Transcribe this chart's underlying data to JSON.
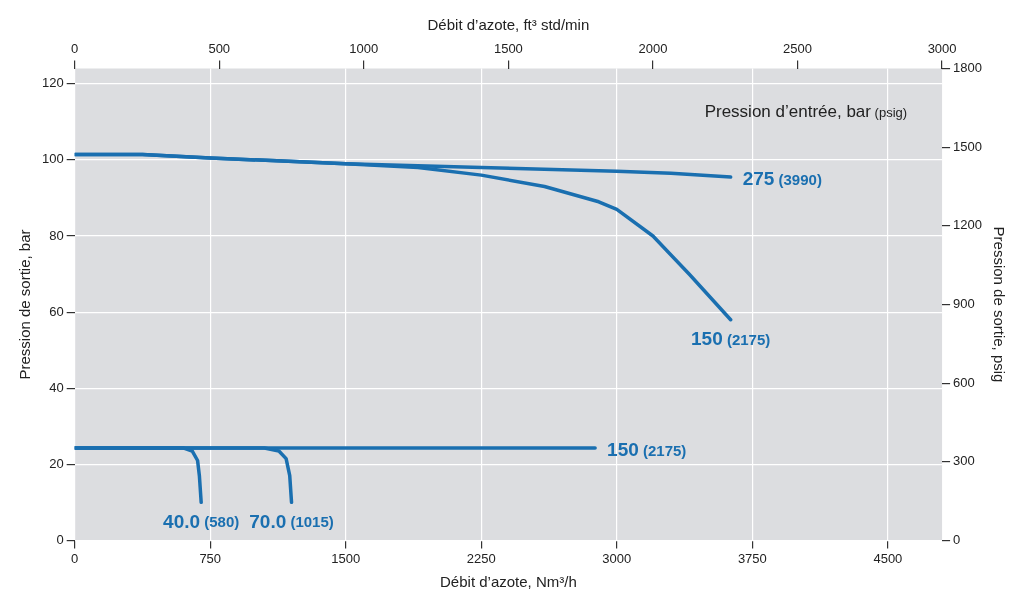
{
  "chart_data": {
    "type": "line",
    "xlabel": "Débit d’azote, Nm³/h",
    "x2label": "Débit d’azote, ft³ std/min",
    "ylabel": "Pression de sortie, bar",
    "y2label": "Pression de sortie, psig",
    "annotations": [
      "Pression d’entrée, bar (psig)"
    ],
    "xlim": [
      0,
      4800
    ],
    "xticks": [
      0,
      750,
      1500,
      2250,
      3000,
      3750,
      4500
    ],
    "x2lim": [
      0,
      3000
    ],
    "x2ticks": [
      0,
      500,
      1000,
      1500,
      2000,
      2500,
      3000
    ],
    "ylim": [
      0,
      124
    ],
    "yticks": [
      0,
      20,
      40,
      60,
      80,
      100,
      120
    ],
    "y2lim": [
      0,
      1800
    ],
    "y2ticks": [
      0,
      300,
      600,
      900,
      1200,
      1500,
      1800
    ],
    "grid": true,
    "legend": false,
    "marker": "none",
    "line_style": "solid",
    "series": [
      {
        "name": "275 (3990)",
        "color": "#1a6fb0",
        "x": [
          0,
          375,
          750,
          1500,
          2250,
          3000,
          3300,
          3630
        ],
        "values": [
          101.4,
          101.4,
          100.5,
          99,
          98,
          97,
          96.5,
          95.5
        ]
      },
      {
        "name": "150 (2175)",
        "color": "#1a6fb0",
        "x": [
          0,
          375,
          750,
          1500,
          1900,
          2250,
          2600,
          2900,
          3000,
          3200,
          3400,
          3630
        ],
        "values": [
          101.4,
          101.4,
          100.5,
          99,
          98,
          96,
          93,
          89,
          87,
          80,
          70,
          58
        ]
      },
      {
        "name": "150 (2175)",
        "color": "#1a6fb0",
        "x": [
          0,
          2880
        ],
        "values": [
          24.3,
          24.3
        ]
      },
      {
        "name": "40.0 (580)",
        "color": "#1a6fb0",
        "x": [
          0,
          600,
          650,
          680,
          690,
          700
        ],
        "values": [
          24.3,
          24.3,
          23.5,
          21,
          17,
          10
        ]
      },
      {
        "name": "70.0 (1015)",
        "color": "#1a6fb0",
        "x": [
          0,
          1050,
          1130,
          1170,
          1190,
          1200
        ],
        "values": [
          24.3,
          24.3,
          23.5,
          21.5,
          17,
          10
        ]
      }
    ]
  }
}
